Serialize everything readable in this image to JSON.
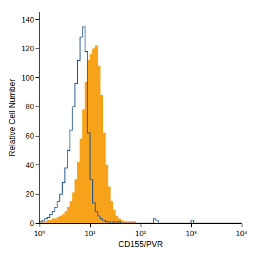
{
  "chart_data": {
    "type": "histogram",
    "x_label": "CD155/PVR",
    "y_label": "Relative Cell Number",
    "log": "x",
    "grid": false,
    "xlim": [
      1,
      10000
    ],
    "xticks": [
      {
        "value": 1,
        "label": "10⁰"
      },
      {
        "value": 10,
        "label": "10¹"
      },
      {
        "value": 100,
        "label": "10²"
      },
      {
        "value": 1000,
        "label": "10³"
      },
      {
        "value": 10000,
        "label": "10⁴"
      }
    ],
    "ylim": [
      0,
      145
    ],
    "yticks": [
      0,
      20,
      40,
      60,
      80,
      100,
      120,
      140
    ],
    "bins": [
      1,
      1.122,
      1.259,
      1.413,
      1.585,
      1.778,
      1.995,
      2.239,
      2.512,
      2.818,
      3.162,
      3.548,
      3.981,
      4.467,
      5.012,
      5.623,
      6.31,
      7.079,
      7.943,
      8.913,
      10,
      11.22,
      12.59,
      14.13,
      15.85,
      17.78,
      19.95,
      22.39,
      25.12,
      28.18,
      31.62,
      35.48,
      39.81,
      44.67,
      50.12,
      56.23,
      63.1,
      70.79,
      79.43,
      89.13,
      100,
      112.2,
      125.9,
      141.3,
      158.5,
      177.8,
      199.5,
      223.9,
      251.2,
      281.8,
      316.2,
      354.8,
      398.1,
      446.7,
      501.2,
      562.3,
      631,
      707.9,
      794.3,
      891.3,
      1000,
      1122,
      1259,
      1413,
      1585,
      1778,
      1995,
      2239,
      2512,
      2818,
      3162,
      3548,
      3981,
      4467,
      5012,
      5623,
      6310,
      7079,
      7943,
      8913,
      10000
    ],
    "series": [
      {
        "type": "filled",
        "color": "#f7a21b",
        "values": [
          0,
          1,
          1,
          2,
          2,
          3,
          3,
          4,
          5,
          6,
          8,
          11,
          15,
          21,
          30,
          42,
          58,
          78,
          97,
          112,
          116,
          120,
          122,
          108,
          88,
          62,
          40,
          25,
          15,
          9,
          5,
          3,
          2,
          1,
          1,
          1,
          1,
          1,
          0,
          0,
          0,
          0,
          0,
          0,
          0,
          0,
          0,
          0,
          0,
          0,
          0,
          0,
          0,
          0,
          0,
          0,
          0,
          0,
          0,
          0,
          0,
          0,
          0,
          0,
          0,
          0,
          0,
          0,
          0,
          0,
          0,
          0,
          0,
          0,
          0,
          0,
          0,
          0,
          0,
          0
        ]
      },
      {
        "type": "outline",
        "color": "#1a4f8a",
        "values": [
          1,
          2,
          3,
          4,
          6,
          8,
          11,
          15,
          20,
          28,
          38,
          50,
          64,
          80,
          96,
          112,
          128,
          135,
          118,
          62,
          30,
          14,
          8,
          5,
          3,
          2,
          1,
          1,
          0,
          1,
          0,
          1,
          0,
          0,
          0,
          0,
          0,
          0,
          0,
          0,
          0,
          0,
          0,
          0,
          0,
          3,
          2,
          0,
          0,
          0,
          0,
          0,
          0,
          0,
          0,
          0,
          0,
          0,
          0,
          0,
          2,
          0,
          0,
          0,
          0,
          0,
          0,
          0,
          0,
          0,
          0,
          0,
          0,
          0,
          0,
          0,
          0,
          0,
          0,
          0
        ]
      }
    ]
  }
}
